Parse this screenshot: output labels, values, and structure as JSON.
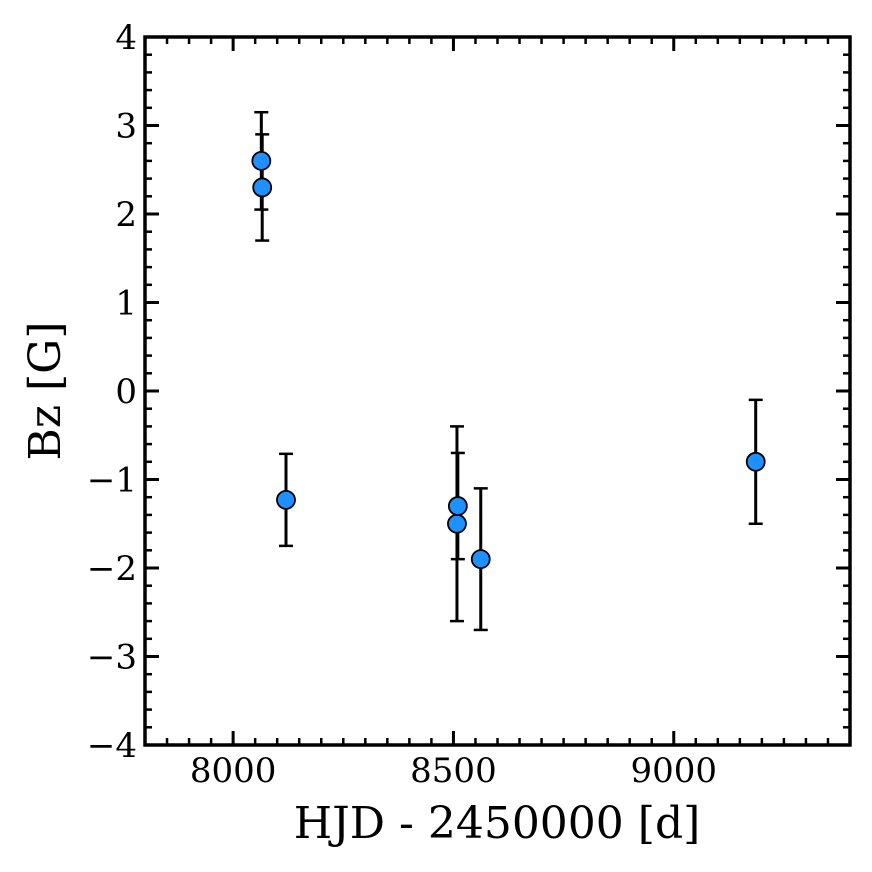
{
  "chart_data": {
    "type": "scatter",
    "title": "",
    "xlabel": "HJD - 2450000 [d]",
    "ylabel": "Bz [G]",
    "xlim": [
      7800,
      9400
    ],
    "ylim": [
      -4,
      4
    ],
    "x_ticks": [
      8000,
      8500,
      9000
    ],
    "x_tick_labels": [
      "8000",
      "8500",
      "9000"
    ],
    "y_ticks": [
      -4,
      -3,
      -2,
      -1,
      0,
      1,
      2,
      3,
      4
    ],
    "y_tick_labels": [
      "−4",
      "−3",
      "−2",
      "−1",
      "0",
      "1",
      "2",
      "3",
      "4"
    ],
    "x_minor_step": 50,
    "y_minor_step": 0.2,
    "grid": false,
    "legend": "none",
    "marker_color": "#1e90ff",
    "marker_edge_color": "#000000",
    "errorbar_color": "#000000",
    "points": [
      {
        "x": 8064,
        "y": 2.6,
        "yerr": 0.55
      },
      {
        "x": 8066,
        "y": 2.3,
        "yerr": 0.6
      },
      {
        "x": 8120,
        "y": -1.23,
        "yerr": 0.52
      },
      {
        "x": 8508,
        "y": -1.5,
        "yerr": 1.1
      },
      {
        "x": 8510,
        "y": -1.3,
        "yerr": 0.6
      },
      {
        "x": 8562,
        "y": -1.9,
        "yerr": 0.8
      },
      {
        "x": 9186,
        "y": -0.8,
        "yerr": 0.7
      }
    ]
  }
}
